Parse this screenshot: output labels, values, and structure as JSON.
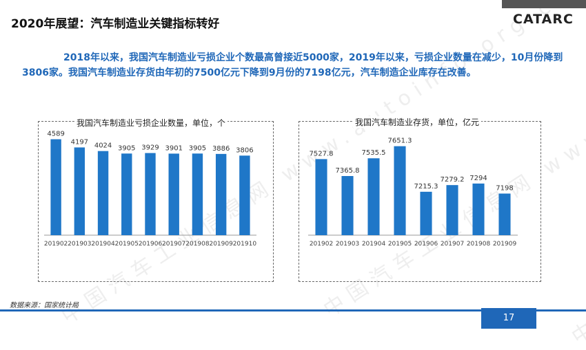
{
  "title": "2020年展望：汽车制造业关键指标转好",
  "logo": "CATARC",
  "summary": "2018年以来，我国汽车制造业亏损企业个数最高曾接近5000家，2019年以来，亏损企业数量在减少，10月份降到3806家。我国汽车制造业存货由年初的7500亿元下降到9月份的7198亿元，汽车制造企业库存在改善。",
  "watermark": "中国汽车工业信息网 www.autoinfo.org.cn",
  "source": "数据来源：国家统计局",
  "page_number": "17",
  "colors": {
    "bar": "#1f77c8",
    "accent": "#1f67b8"
  },
  "chart_data": [
    {
      "type": "bar",
      "title": "我国汽车制造业亏损企业数量，单位，个",
      "categories": [
        "201902",
        "201903",
        "201904",
        "201905",
        "201906",
        "201907",
        "201908",
        "201909",
        "201910"
      ],
      "values": [
        4589,
        4197,
        4024,
        3905,
        3929,
        3901,
        3905,
        3886,
        3806
      ],
      "ylim": [
        0,
        5000
      ],
      "grid": false
    },
    {
      "type": "bar",
      "title": "我国汽车制造业存货，单位，亿元",
      "categories": [
        "201902",
        "201903",
        "201904",
        "201905",
        "201906",
        "201907",
        "201908",
        "201909"
      ],
      "values": [
        7527.8,
        7365.8,
        7535.5,
        7651.3,
        7215.3,
        7279.2,
        7294,
        7198
      ],
      "ylim": [
        6800,
        7800
      ],
      "grid": false
    }
  ]
}
